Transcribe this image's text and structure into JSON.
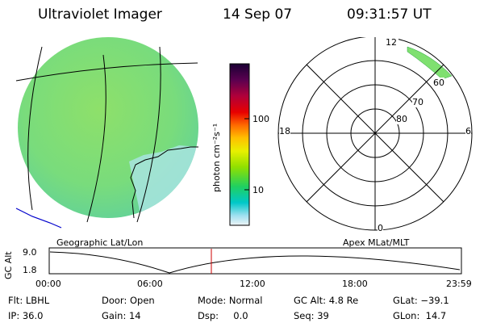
{
  "header": {
    "title": "Ultraviolet Imager",
    "date": "14 Sep 07",
    "time": "09:31:57 UT"
  },
  "colorbar": {
    "unit_label": "photon cm⁻²s⁻¹",
    "ticks": [
      "100",
      "10"
    ],
    "colors": [
      "#1a0033",
      "#5a0050",
      "#a0002a",
      "#e00000",
      "#ff5a00",
      "#ffb000",
      "#e8f000",
      "#8ee000",
      "#20d050",
      "#00c8c8",
      "#9ae0f0",
      "#e8f4f6"
    ]
  },
  "left_panel": {
    "label": "Geographic Lat/Lon",
    "disk_color": "#7fe070",
    "boundary_color": "#000000",
    "coast_color": "#0000cc"
  },
  "polar_plot": {
    "label": "Apex MLat/MLT",
    "mlt_labels": {
      "top": "12",
      "left": "18",
      "right": "6",
      "bottom": "0"
    },
    "lat_labels": [
      "60",
      "70",
      "80"
    ],
    "aurora_color": "#7fe070"
  },
  "timeline": {
    "ylabel": "GC Alt",
    "yticks": [
      "9.0",
      "1.8"
    ],
    "xticks": [
      "00:00",
      "06:00",
      "12:00",
      "18:00",
      "23:59"
    ],
    "marker_color": "#cc0000"
  },
  "info": {
    "filter": "Flt: LBHL",
    "door": "Door: Open",
    "mode": "Mode: Normal",
    "gc_alt": "GC Alt: 4.8 Re",
    "glat": "GLat: −39.1",
    "ip": "IP: 36.0",
    "gain": "Gain: 14",
    "dsp": "Dsp:     0.0",
    "seq": "Seq: 39",
    "glon": "GLon:  14.7"
  }
}
